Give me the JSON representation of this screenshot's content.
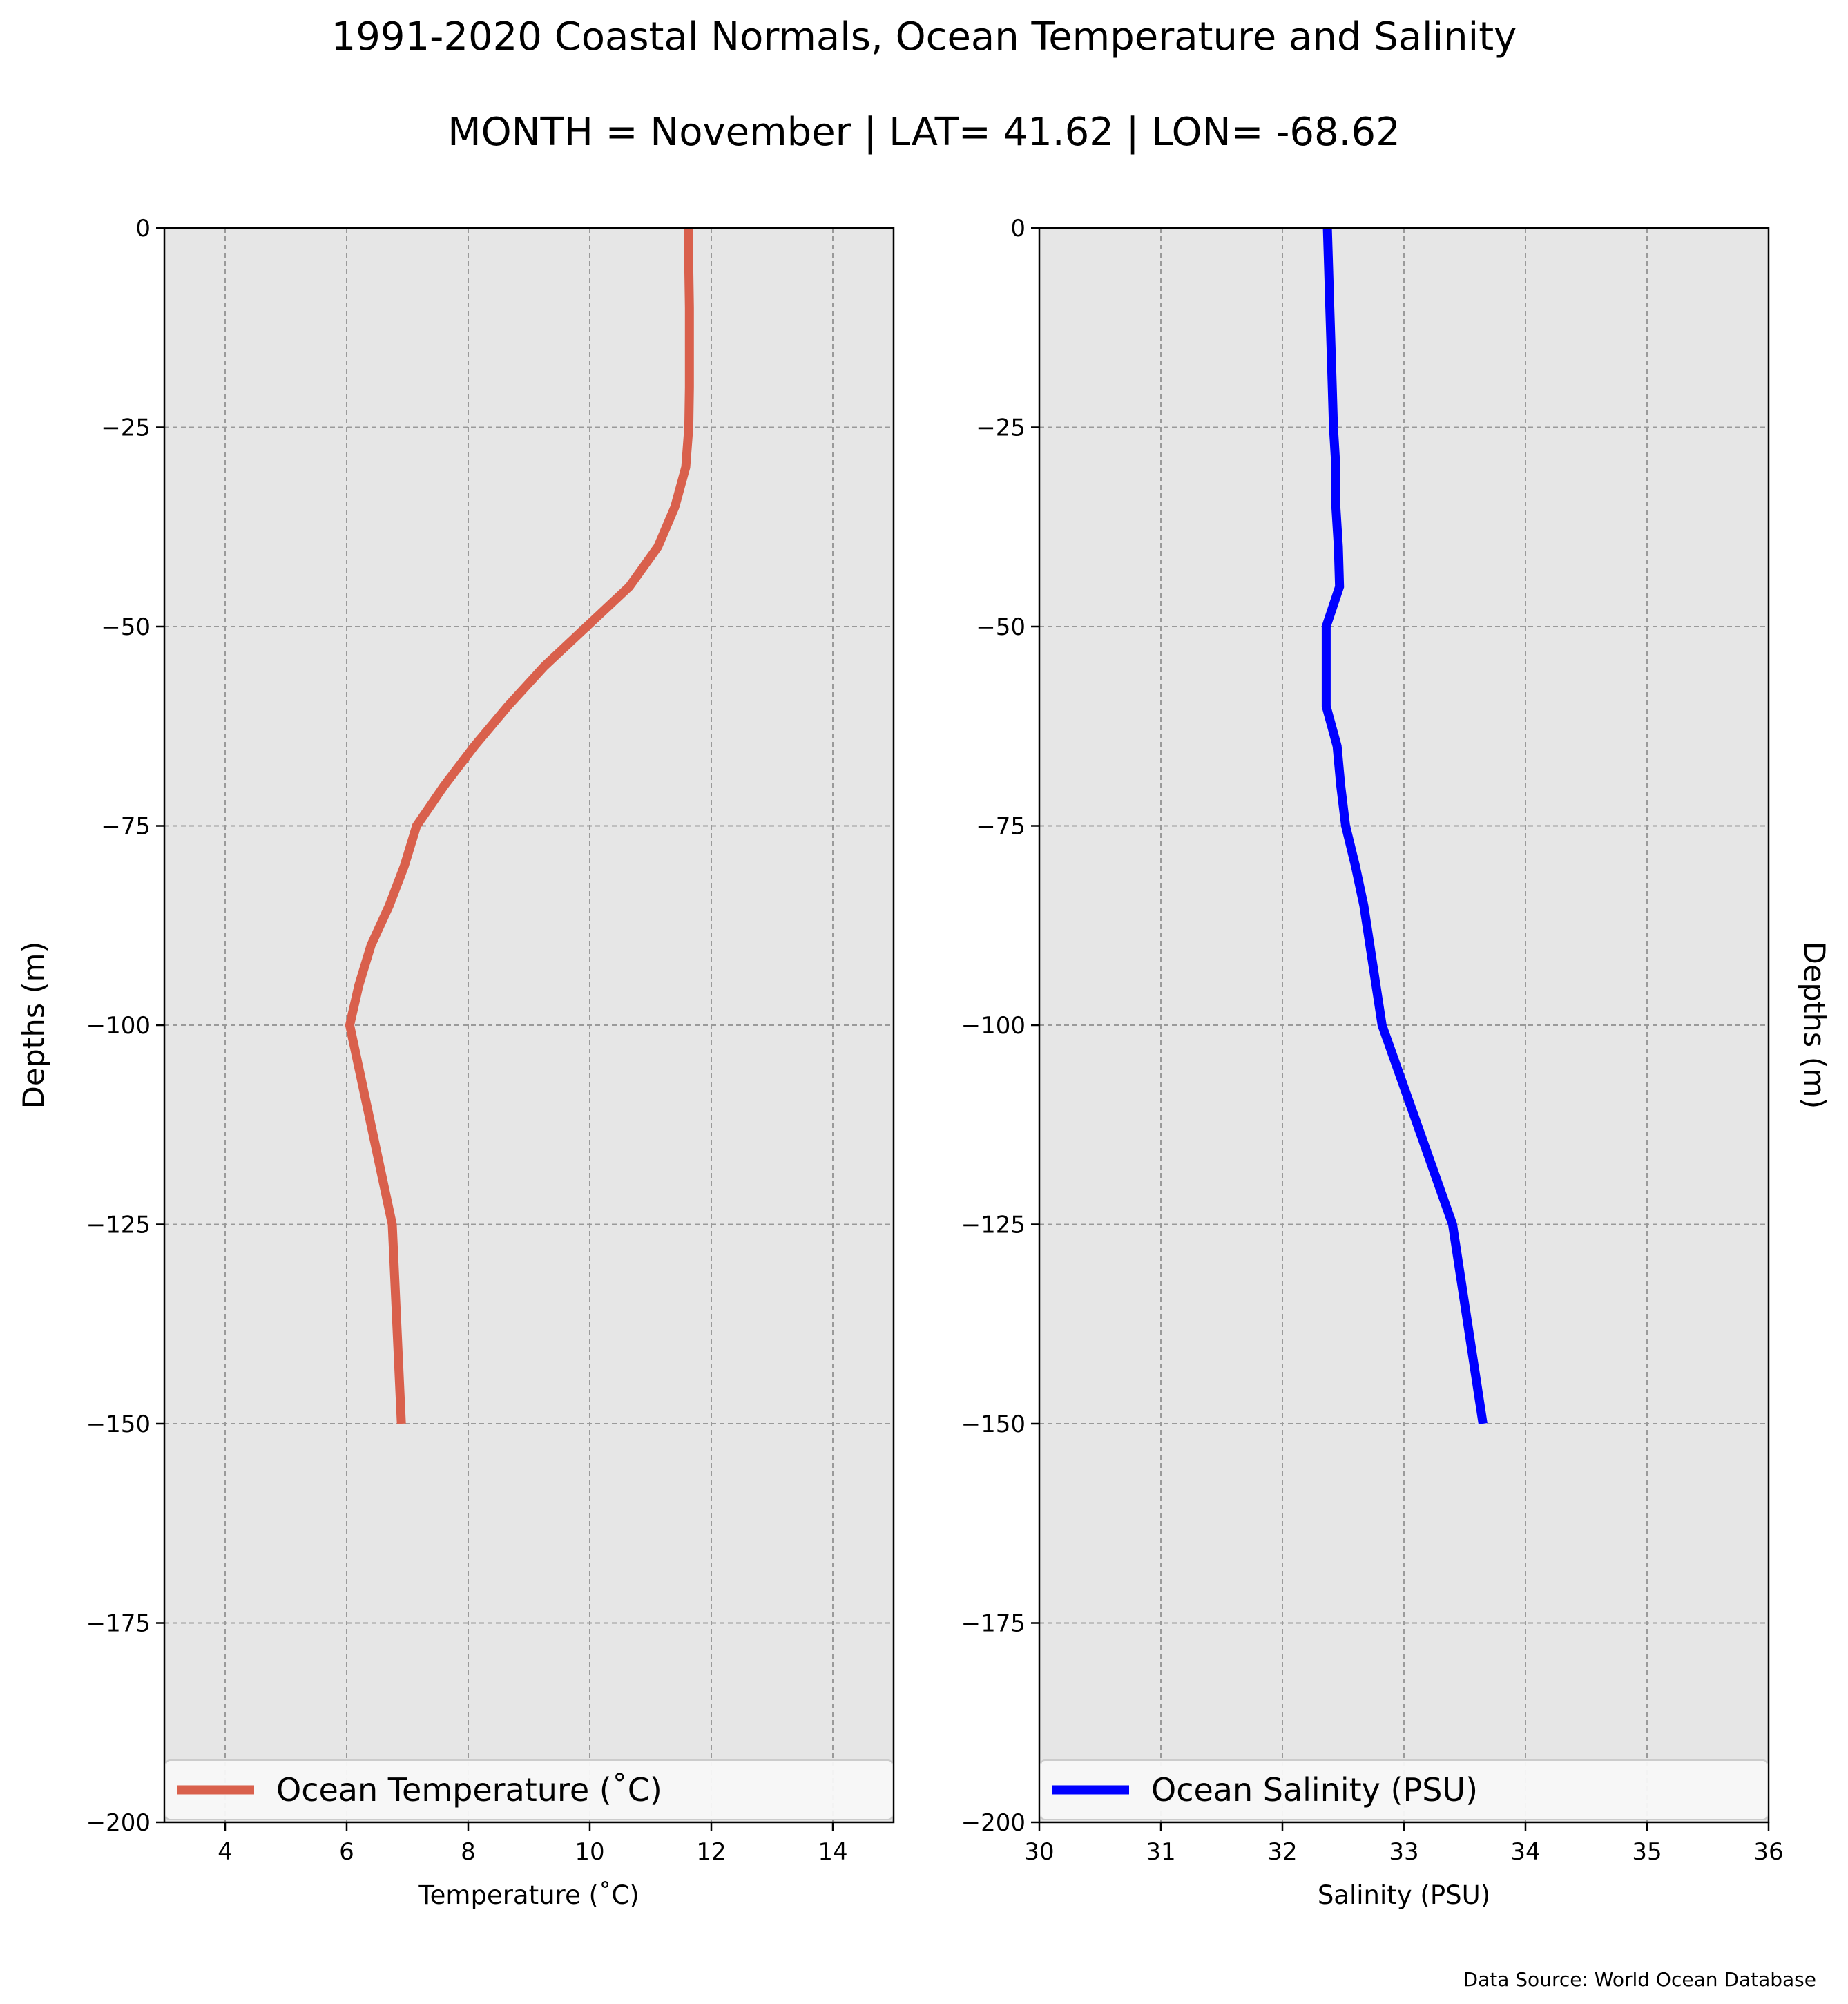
{
  "figure": {
    "title": "1991-2020 Coastal Normals, Ocean Temperature and Salinity",
    "subtitle": "MONTH = November | LAT= 41.62 | LON= -68.62",
    "data_source": "Data Source: World Ocean Database",
    "background_color": "#ffffff"
  },
  "chart_data": [
    {
      "type": "line",
      "xlabel": "Temperature ($^\\circ$C)",
      "xlabel_display": "Temperature (˚C)",
      "ylabel": "Depths (m)",
      "ylabel_position": "left",
      "xlim": [
        3,
        15
      ],
      "ylim": [
        -200,
        0
      ],
      "xticks": [
        4,
        6,
        8,
        10,
        12,
        14
      ],
      "xtick_labels": [
        "4",
        "6",
        "8",
        "10",
        "12",
        "14"
      ],
      "yticks": [
        0,
        -25,
        -50,
        -75,
        -100,
        -125,
        -150,
        -175,
        -200
      ],
      "ytick_labels": [
        "0",
        "−25",
        "−50",
        "−75",
        "−100",
        "−125",
        "−150",
        "−175",
        "−200"
      ],
      "grid": true,
      "legend_placement": "lower center",
      "plot_background": "#e6e6e6",
      "series": [
        {
          "name": "Ocean Temperature (˚C)",
          "color": "#d9604c",
          "points": [
            {
              "x": 11.62,
              "y": 0
            },
            {
              "x": 11.63,
              "y": -5
            },
            {
              "x": 11.64,
              "y": -10
            },
            {
              "x": 11.64,
              "y": -15
            },
            {
              "x": 11.64,
              "y": -20
            },
            {
              "x": 11.63,
              "y": -25
            },
            {
              "x": 11.58,
              "y": -30
            },
            {
              "x": 11.4,
              "y": -35
            },
            {
              "x": 11.12,
              "y": -40
            },
            {
              "x": 10.65,
              "y": -45
            },
            {
              "x": 9.95,
              "y": -50
            },
            {
              "x": 9.25,
              "y": -55
            },
            {
              "x": 8.65,
              "y": -60
            },
            {
              "x": 8.1,
              "y": -65
            },
            {
              "x": 7.6,
              "y": -70
            },
            {
              "x": 7.15,
              "y": -75
            },
            {
              "x": 6.95,
              "y": -80
            },
            {
              "x": 6.7,
              "y": -85
            },
            {
              "x": 6.4,
              "y": -90
            },
            {
              "x": 6.2,
              "y": -95
            },
            {
              "x": 6.05,
              "y": -100
            },
            {
              "x": 6.75,
              "y": -125
            },
            {
              "x": 6.9,
              "y": -150
            }
          ]
        }
      ]
    },
    {
      "type": "line",
      "xlabel": "Salinity (PSU)",
      "ylabel": "Depths (m)",
      "ylabel_position": "right",
      "xlim": [
        30,
        36
      ],
      "ylim": [
        -200,
        0
      ],
      "xticks": [
        30,
        31,
        32,
        33,
        34,
        35,
        36
      ],
      "xtick_labels": [
        "30",
        "31",
        "32",
        "33",
        "34",
        "35",
        "36"
      ],
      "yticks": [
        0,
        -25,
        -50,
        -75,
        -100,
        -125,
        -150,
        -175,
        -200
      ],
      "ytick_labels": [
        "0",
        "−25",
        "−50",
        "−75",
        "−100",
        "−125",
        "−150",
        "−175",
        "−200"
      ],
      "grid": true,
      "legend_placement": "lower center",
      "plot_background": "#e6e6e6",
      "series": [
        {
          "name": "Ocean Salinity (PSU)",
          "color": "#0000ff",
          "points": [
            {
              "x": 32.37,
              "y": 0
            },
            {
              "x": 32.38,
              "y": -5
            },
            {
              "x": 32.39,
              "y": -10
            },
            {
              "x": 32.4,
              "y": -15
            },
            {
              "x": 32.41,
              "y": -20
            },
            {
              "x": 32.42,
              "y": -25
            },
            {
              "x": 32.44,
              "y": -30
            },
            {
              "x": 32.44,
              "y": -35
            },
            {
              "x": 32.46,
              "y": -40
            },
            {
              "x": 32.47,
              "y": -45
            },
            {
              "x": 32.36,
              "y": -50
            },
            {
              "x": 32.36,
              "y": -55
            },
            {
              "x": 32.36,
              "y": -60
            },
            {
              "x": 32.45,
              "y": -65
            },
            {
              "x": 32.48,
              "y": -70
            },
            {
              "x": 32.52,
              "y": -75
            },
            {
              "x": 32.6,
              "y": -80
            },
            {
              "x": 32.67,
              "y": -85
            },
            {
              "x": 32.72,
              "y": -90
            },
            {
              "x": 32.77,
              "y": -95
            },
            {
              "x": 32.82,
              "y": -100
            },
            {
              "x": 33.4,
              "y": -125
            },
            {
              "x": 33.65,
              "y": -150
            }
          ]
        }
      ]
    }
  ]
}
